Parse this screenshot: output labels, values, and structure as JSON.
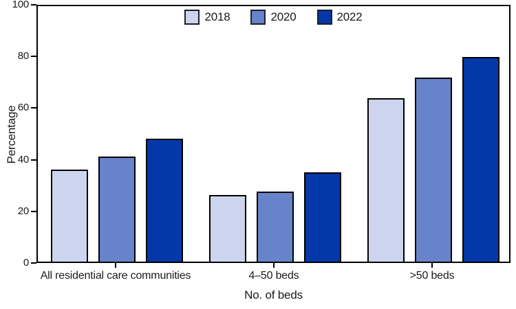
{
  "chart_data": {
    "type": "bar",
    "title": "",
    "xlabel": "No. of beds",
    "ylabel": "Percentage",
    "ylim": [
      0,
      100
    ],
    "yticks": [
      0,
      20,
      40,
      60,
      80,
      100
    ],
    "grid": false,
    "legend_position": "top-center",
    "categories": [
      "All residential care communities",
      "4–50 beds",
      ">50 beds"
    ],
    "series": [
      {
        "name": "2018",
        "color": "#cdd4ee",
        "values": [
          36,
          26,
          64
        ]
      },
      {
        "name": "2020",
        "color": "#6784cb",
        "values": [
          41,
          27.5,
          72
        ]
      },
      {
        "name": "2022",
        "color": "#0438a8",
        "values": [
          48,
          35,
          80
        ]
      }
    ],
    "frame_color": "#000000",
    "bar_border_color": "#000000"
  }
}
